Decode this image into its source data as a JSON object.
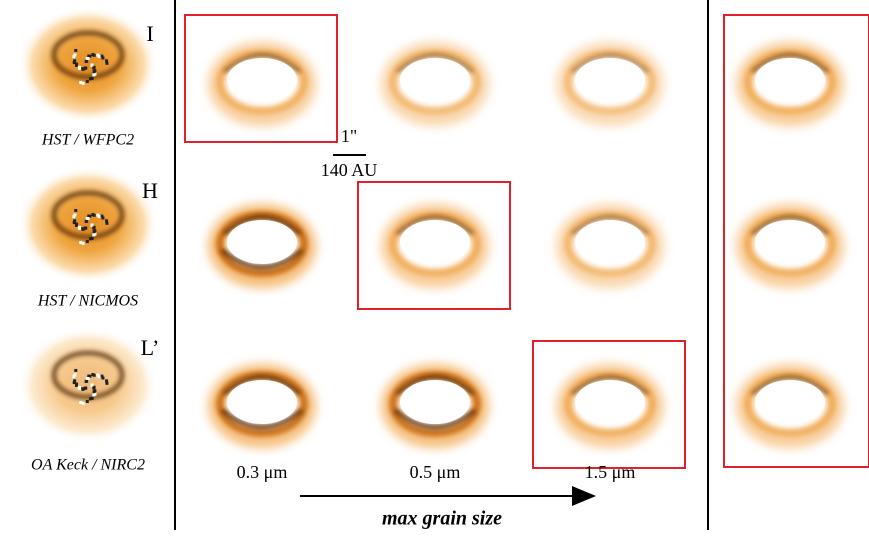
{
  "observations": [
    {
      "band": "I",
      "instrument": "HST / WFPC2"
    },
    {
      "band": "H",
      "instrument": "HST / NICMOS"
    },
    {
      "band": "L’",
      "instrument": "OA Keck / NIRC2"
    }
  ],
  "scale_bar": {
    "angle": "1\"",
    "distance": "140 AU"
  },
  "grain_sizes": [
    "0.3 μm",
    "0.5 μm",
    "1.5 μm"
  ],
  "axis_label": "max grain size"
}
